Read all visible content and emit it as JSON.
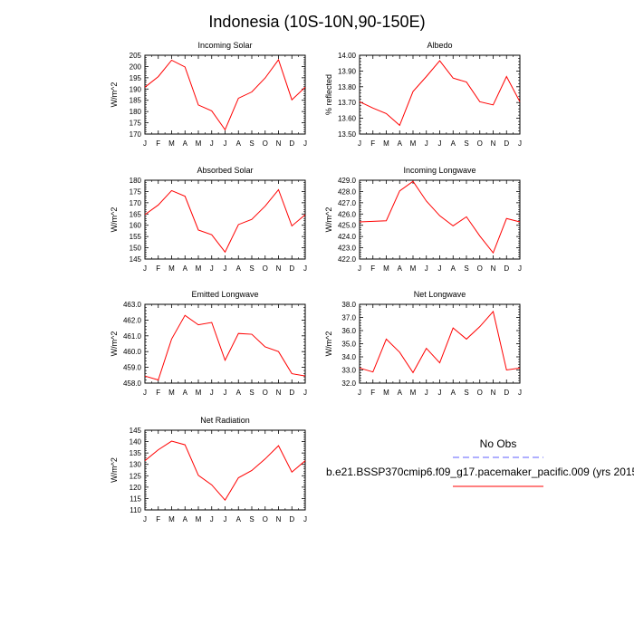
{
  "figure": {
    "title": "Indonesia (10S-10N,90-150E)",
    "legend": {
      "obs_label": "No Obs",
      "model_label": "b.e21.BSSP370cmip6.f09_g17.pacemaker_pacific.009 (yrs 2015",
      "obs_color": "#7f7fff",
      "model_color": "#ff0000"
    }
  },
  "chart_data": [
    {
      "type": "line",
      "title": "Incoming Solar",
      "ylabel": "W/m^2",
      "xlabel": "",
      "categories": [
        "J",
        "F",
        "M",
        "A",
        "M",
        "J",
        "J",
        "A",
        "S",
        "O",
        "N",
        "D",
        "J"
      ],
      "ylim": [
        170,
        205
      ],
      "yticks": [
        "170",
        "175",
        "180",
        "185",
        "190",
        "195",
        "200",
        "205"
      ],
      "series": [
        {
          "name": "b.e21.BSSP370cmip6.f09_g17.pacemaker_pacific.009",
          "color": "#ff0000",
          "values": [
            190.8,
            195.5,
            202.8,
            199.8,
            182.9,
            180.3,
            171.9,
            185.9,
            188.7,
            194.9,
            203.0,
            185.2,
            190.8
          ]
        }
      ]
    },
    {
      "type": "line",
      "title": "Albedo",
      "ylabel": "% reflected",
      "xlabel": "",
      "categories": [
        "J",
        "F",
        "M",
        "A",
        "M",
        "J",
        "J",
        "A",
        "S",
        "O",
        "N",
        "D",
        "J"
      ],
      "ylim": [
        13.5,
        14.0
      ],
      "yticks": [
        "13.50",
        "13.60",
        "13.70",
        "13.80",
        "13.90",
        "14.00"
      ],
      "series": [
        {
          "name": "b.e21.BSSP370cmip6.f09_g17.pacemaker_pacific.009",
          "color": "#ff0000",
          "values": [
            13.705,
            13.665,
            13.63,
            13.555,
            13.77,
            13.865,
            13.965,
            13.855,
            13.83,
            13.705,
            13.685,
            13.865,
            13.705
          ]
        }
      ]
    },
    {
      "type": "line",
      "title": "Absorbed Solar",
      "ylabel": "W/m^2",
      "xlabel": "",
      "categories": [
        "J",
        "F",
        "M",
        "A",
        "M",
        "J",
        "J",
        "A",
        "S",
        "O",
        "N",
        "D",
        "J"
      ],
      "ylim": [
        145,
        180
      ],
      "yticks": [
        "145",
        "150",
        "155",
        "160",
        "165",
        "170",
        "175",
        "180"
      ],
      "series": [
        {
          "name": "b.e21.BSSP370cmip6.f09_g17.pacemaker_pacific.009",
          "color": "#ff0000",
          "values": [
            164.7,
            169.0,
            175.4,
            172.9,
            157.9,
            155.8,
            148.1,
            160.3,
            162.6,
            168.5,
            175.8,
            159.7,
            164.7
          ]
        }
      ]
    },
    {
      "type": "line",
      "title": "Incoming Longwave",
      "ylabel": "W/m^2",
      "xlabel": "",
      "categories": [
        "J",
        "F",
        "M",
        "A",
        "M",
        "J",
        "J",
        "A",
        "S",
        "O",
        "N",
        "D",
        "J"
      ],
      "ylim": [
        422.0,
        429.0
      ],
      "yticks": [
        "422.0",
        "423.0",
        "424.0",
        "425.0",
        "426.0",
        "427.0",
        "428.0",
        "429.0"
      ],
      "series": [
        {
          "name": "b.e21.BSSP370cmip6.f09_g17.pacemaker_pacific.009",
          "color": "#ff0000",
          "values": [
            425.3,
            425.35,
            425.4,
            428.05,
            428.9,
            427.15,
            425.85,
            424.95,
            425.75,
            424.05,
            422.55,
            425.6,
            425.3
          ]
        }
      ]
    },
    {
      "type": "line",
      "title": "Emitted Longwave",
      "ylabel": "W/m^2",
      "xlabel": "",
      "categories": [
        "J",
        "F",
        "M",
        "A",
        "M",
        "J",
        "J",
        "A",
        "S",
        "O",
        "N",
        "D",
        "J"
      ],
      "ylim": [
        458.0,
        463.0
      ],
      "yticks": [
        "458.0",
        "459.0",
        "460.0",
        "461.0",
        "462.0",
        "463.0"
      ],
      "series": [
        {
          "name": "b.e21.BSSP370cmip6.f09_g17.pacemaker_pacific.009",
          "color": "#ff0000",
          "values": [
            458.45,
            458.2,
            460.8,
            462.3,
            461.7,
            461.85,
            459.45,
            461.15,
            461.1,
            460.3,
            460.0,
            458.6,
            458.45
          ]
        }
      ]
    },
    {
      "type": "line",
      "title": "Net Longwave",
      "ylabel": "W/m^2",
      "xlabel": "",
      "categories": [
        "J",
        "F",
        "M",
        "A",
        "M",
        "J",
        "J",
        "A",
        "S",
        "O",
        "N",
        "D",
        "J"
      ],
      "ylim": [
        32.0,
        38.0
      ],
      "yticks": [
        "32.0",
        "33.0",
        "34.0",
        "35.0",
        "36.0",
        "37.0",
        "38.0"
      ],
      "series": [
        {
          "name": "b.e21.BSSP370cmip6.f09_g17.pacemaker_pacific.009",
          "color": "#ff0000",
          "values": [
            33.15,
            32.85,
            35.35,
            34.35,
            32.8,
            34.65,
            33.55,
            36.2,
            35.35,
            36.3,
            37.45,
            33.0,
            33.15
          ]
        }
      ]
    },
    {
      "type": "line",
      "title": "Net Radiation",
      "ylabel": "W/m^2",
      "xlabel": "",
      "categories": [
        "J",
        "F",
        "M",
        "A",
        "M",
        "J",
        "J",
        "A",
        "S",
        "O",
        "N",
        "D",
        "J"
      ],
      "ylim": [
        110,
        145
      ],
      "yticks": [
        "110",
        "115",
        "120",
        "125",
        "130",
        "135",
        "140",
        "145"
      ],
      "series": [
        {
          "name": "b.e21.BSSP370cmip6.f09_g17.pacemaker_pacific.009",
          "color": "#ff0000",
          "values": [
            131.6,
            136.4,
            140.2,
            138.6,
            125.2,
            121.0,
            114.3,
            124.1,
            127.3,
            132.4,
            138.2,
            126.6,
            131.6
          ]
        }
      ]
    }
  ]
}
